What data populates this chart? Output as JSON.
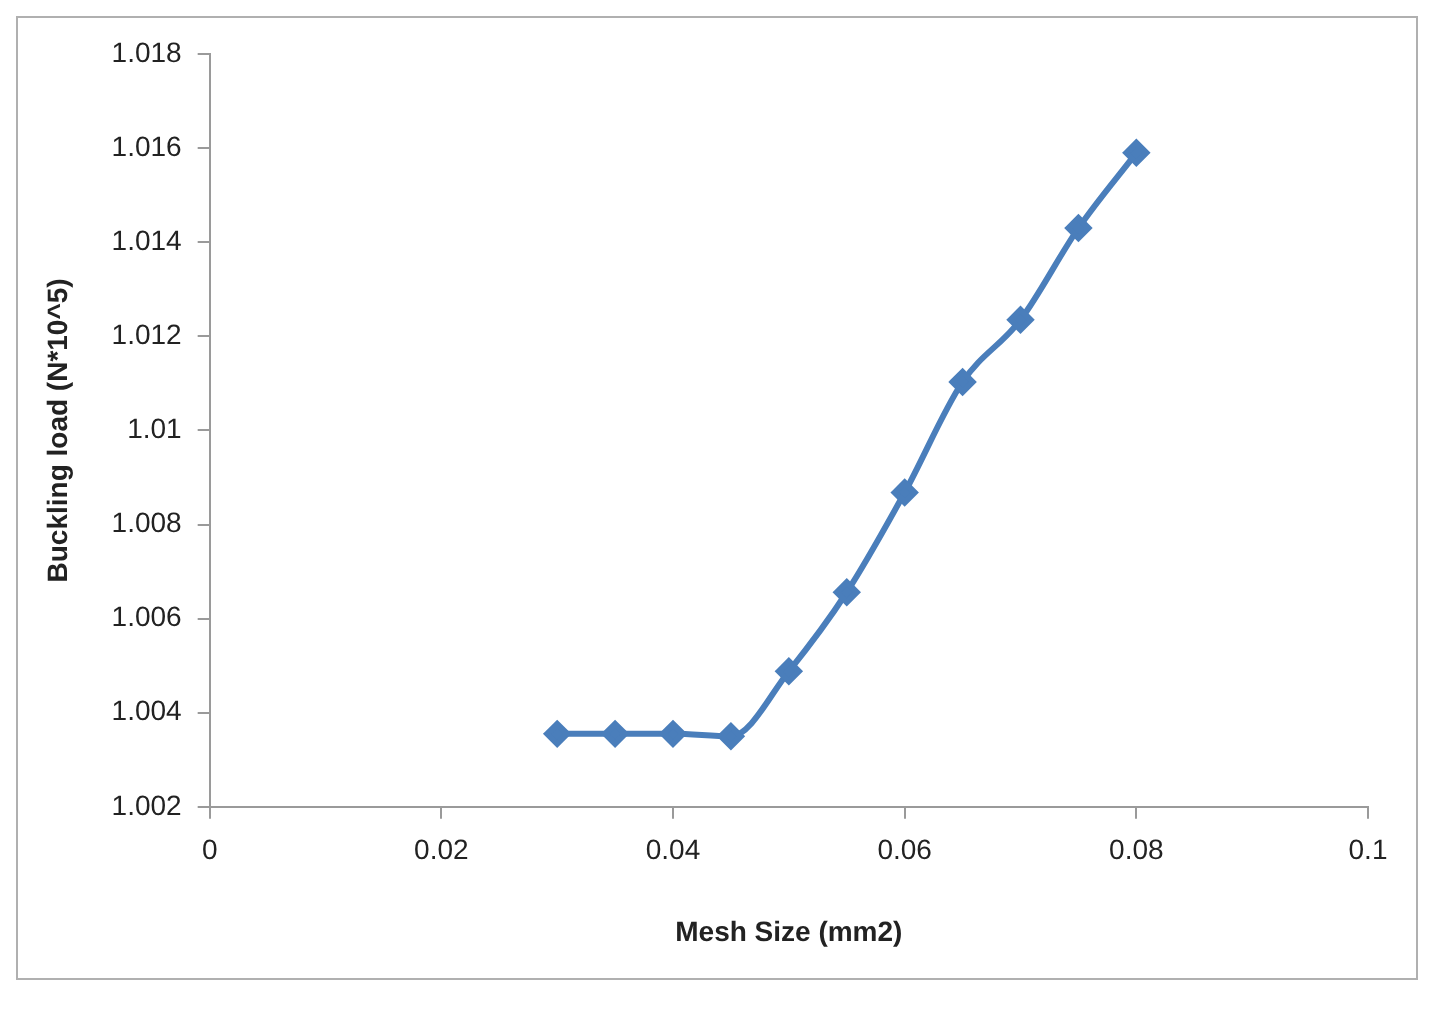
{
  "chart_data": {
    "type": "line",
    "xlabel": "Mesh Size (mm2)",
    "ylabel": "Buckling load (N*10^5)",
    "x": [
      0.03,
      0.035,
      0.04,
      0.045,
      0.05,
      0.055,
      0.06,
      0.065,
      0.07,
      0.075,
      0.08
    ],
    "series": [
      {
        "color": "#4a7ebb",
        "values": [
          1.00355,
          1.00355,
          1.00355,
          1.0035,
          1.00488,
          1.00656,
          1.00868,
          1.01103,
          1.01235,
          1.0143,
          1.0159
        ]
      }
    ],
    "xlim": [
      0,
      0.1
    ],
    "xticks": [
      0,
      0.02,
      0.04,
      0.06,
      0.08,
      0.1
    ],
    "ylim": [
      1.002,
      1.018
    ],
    "yticks": [
      1.002,
      1.004,
      1.006,
      1.008,
      1.01,
      1.012,
      1.014,
      1.016,
      1.018
    ],
    "grid": false,
    "legend": false,
    "marker": "diamond",
    "line_style": "solid"
  }
}
